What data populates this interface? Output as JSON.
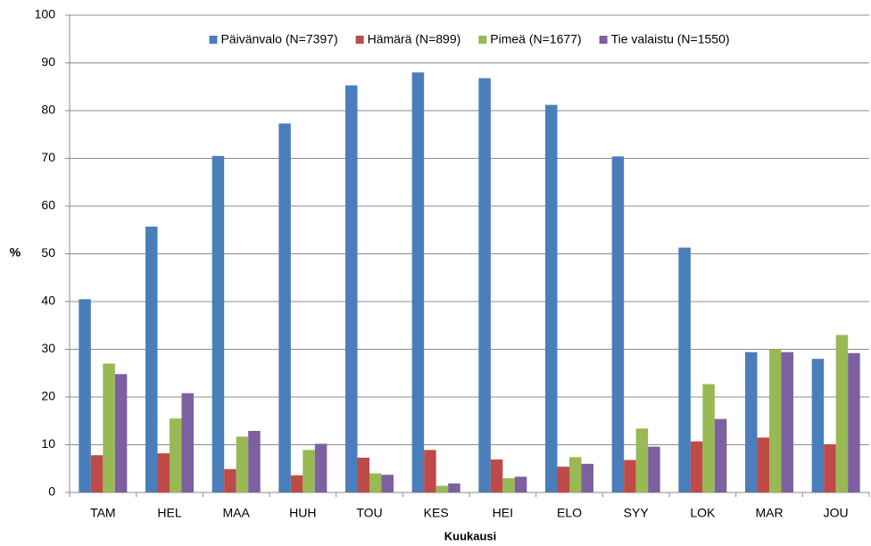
{
  "chart_data": {
    "type": "bar",
    "x_label": "Kuukausi",
    "y_label": "%",
    "categories": [
      "TAM",
      "HEL",
      "MAA",
      "HUH",
      "TOU",
      "KES",
      "HEI",
      "ELO",
      "SYY",
      "LOK",
      "MAR",
      "JOU"
    ],
    "series": [
      {
        "name": "Päivänvalo (N=7397)",
        "color": "#4a7ebb",
        "values": [
          40.5,
          55.7,
          70.5,
          77.3,
          85.3,
          88,
          86.8,
          81.2,
          70.4,
          51.3,
          29.4,
          28
        ]
      },
      {
        "name": "Hämärä (N=899)",
        "color": "#be4b48",
        "values": [
          7.8,
          8.2,
          4.9,
          3.6,
          7.3,
          8.9,
          6.9,
          5.4,
          6.8,
          10.7,
          11.5,
          10.1
        ]
      },
      {
        "name": "Pimeä (N=1677)",
        "color": "#98b954",
        "values": [
          27,
          15.5,
          11.7,
          8.9,
          4,
          1.4,
          3,
          7.4,
          13.4,
          22.7,
          30,
          33
        ]
      },
      {
        "name": "Tie valaistu (N=1550)",
        "color": "#7d60a0",
        "values": [
          24.8,
          20.8,
          12.9,
          10.2,
          3.7,
          1.9,
          3.3,
          6,
          9.6,
          15.4,
          29.4,
          29.2
        ]
      }
    ],
    "ylim": [
      0,
      100
    ],
    "yticks": [
      0,
      10,
      20,
      30,
      40,
      50,
      60,
      70,
      80,
      90,
      100
    ],
    "grid": true,
    "legend": "top"
  }
}
